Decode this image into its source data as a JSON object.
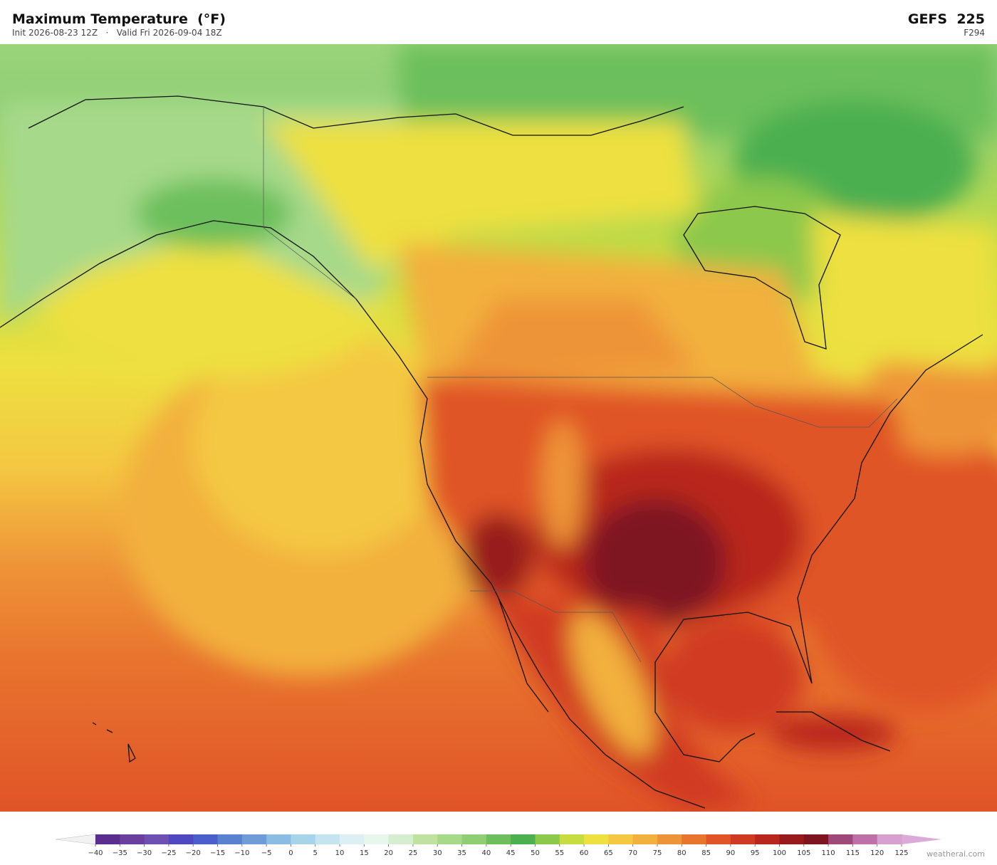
{
  "header": {
    "title": "Maximum Temperature  (°F)",
    "subtitle": "Init 2026-08-23 12Z   ·   Valid Fri 2026-09-04 18Z",
    "model": "GEFS  225",
    "forecast_hour": "F294"
  },
  "colorbar": {
    "ticks": [
      {
        "value": -40,
        "label": "−40"
      },
      {
        "value": -35,
        "label": "−35"
      },
      {
        "value": -30,
        "label": "−30"
      },
      {
        "value": -25,
        "label": "−25"
      },
      {
        "value": -20,
        "label": "−20"
      },
      {
        "value": -15,
        "label": "−15"
      },
      {
        "value": -10,
        "label": "−10"
      },
      {
        "value": -5,
        "label": "−5"
      },
      0,
      5,
      10,
      15,
      20,
      25,
      30,
      35,
      40,
      45,
      50,
      55,
      60,
      65,
      70,
      75,
      80,
      85,
      90,
      95,
      100,
      105,
      110,
      115,
      120,
      125
    ],
    "colors": [
      "#5a2d8e",
      "#6b3fa0",
      "#6e50b2",
      "#5048c0",
      "#4a5fcc",
      "#5a80d0",
      "#6f9bd8",
      "#8bbde2",
      "#a8d4ea",
      "#c4e4f0",
      "#dcf0f4",
      "#e8f6ec",
      "#d4eecf",
      "#bfe2a0",
      "#a6d98a",
      "#8fce74",
      "#6cbf5c",
      "#4caf50",
      "#8cc84c",
      "#c6dc40",
      "#ede040",
      "#f4c842",
      "#f2b03e",
      "#ee9438",
      "#e8742e",
      "#e05428",
      "#d03a22",
      "#b8261e",
      "#981a1c",
      "#7e1420",
      "#a0487a",
      "#c070a8",
      "#d8a0d0"
    ],
    "under_color": "#f2f2f2",
    "over_color": "#dcaad8"
  },
  "footer": {
    "credit": "weatherai.com"
  }
}
